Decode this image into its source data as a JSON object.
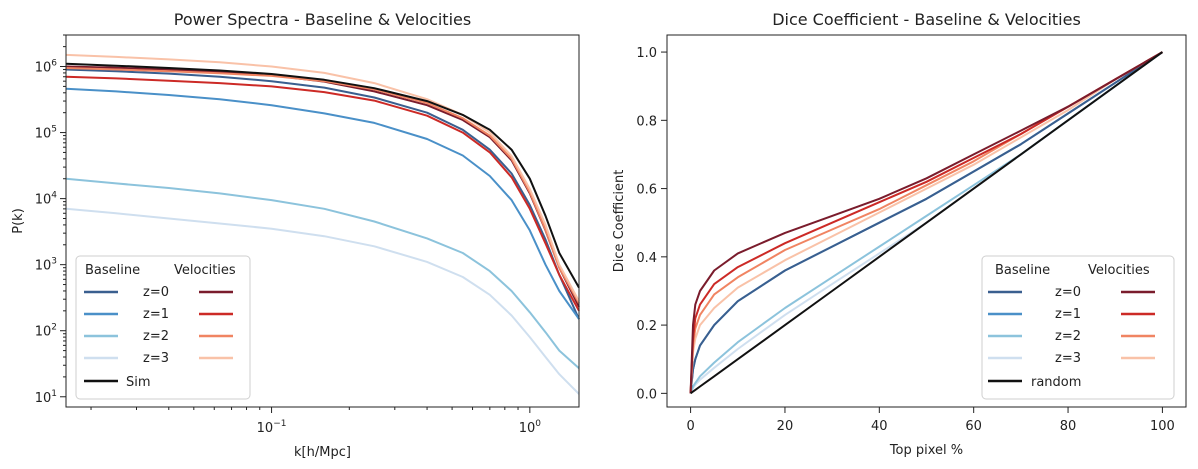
{
  "chart_data": [
    {
      "type": "line",
      "title": "Power Spectra - Baseline & Velocities",
      "xlabel": "k[h/Mpc]",
      "ylabel": "P(k)",
      "xscale": "log",
      "yscale": "log",
      "xlim": [
        0.016,
        1.55
      ],
      "ylim": [
        7,
        3000000
      ],
      "x_ticks": [
        {
          "value": 0.1,
          "base": "10",
          "exp": "−1"
        },
        {
          "value": 1,
          "base": "10",
          "exp": "0"
        }
      ],
      "y_ticks": [
        {
          "value": 10,
          "base": "10",
          "exp": "1"
        },
        {
          "value": 100,
          "base": "10",
          "exp": "2"
        },
        {
          "value": 1000,
          "base": "10",
          "exp": "3"
        },
        {
          "value": 10000,
          "base": "10",
          "exp": "4"
        },
        {
          "value": 100000,
          "base": "10",
          "exp": "5"
        },
        {
          "value": 1000000,
          "base": "10",
          "exp": "6"
        }
      ],
      "grid": false,
      "legend_placement": "lower-left",
      "legend": {
        "headers": [
          "Baseline",
          "Velocities"
        ],
        "rows": [
          "z=0",
          "z=1",
          "z=2",
          "z=3"
        ],
        "extra": "Sim"
      },
      "x": [
        0.016,
        0.025,
        0.04,
        0.063,
        0.1,
        0.16,
        0.25,
        0.4,
        0.55,
        0.7,
        0.85,
        1.0,
        1.15,
        1.3,
        1.55
      ],
      "series": [
        {
          "group": "Baseline",
          "label": "z=0",
          "color": "#3a5f8f",
          "values": [
            900000,
            850000,
            780000,
            700000,
            600000,
            480000,
            340000,
            200000,
            110000,
            55000,
            24000,
            8000,
            2400,
            700,
            150
          ]
        },
        {
          "group": "Baseline",
          "label": "z=1",
          "color": "#4a90c8",
          "values": [
            460000,
            420000,
            370000,
            320000,
            260000,
            195000,
            140000,
            80000,
            45000,
            22000,
            9500,
            3300,
            1000,
            400,
            150
          ]
        },
        {
          "group": "Baseline",
          "label": "z=2",
          "color": "#8cc3dc",
          "values": [
            20000,
            17000,
            14500,
            12000,
            9500,
            7000,
            4500,
            2500,
            1500,
            800,
            400,
            190,
            95,
            50,
            27
          ]
        },
        {
          "group": "Baseline",
          "label": "z=3",
          "color": "#cfdfef",
          "values": [
            7000,
            6000,
            5000,
            4200,
            3500,
            2700,
            1900,
            1100,
            650,
            350,
            170,
            80,
            40,
            22,
            11
          ]
        },
        {
          "group": "Velocities",
          "label": "z=0",
          "color": "#7a1c2c",
          "values": [
            1000000,
            960000,
            900000,
            830000,
            740000,
            590000,
            420000,
            260000,
            155000,
            85000,
            38000,
            12000,
            3300,
            900,
            230
          ]
        },
        {
          "group": "Velocities",
          "label": "z=1",
          "color": "#cc2a26",
          "values": [
            700000,
            660000,
            610000,
            560000,
            500000,
            410000,
            305000,
            180000,
            100000,
            50000,
            21000,
            7000,
            2100,
            700,
            200
          ]
        },
        {
          "group": "Velocities",
          "label": "z=2",
          "color": "#f08462",
          "values": [
            950000,
            900000,
            850000,
            790000,
            720000,
            600000,
            450000,
            280000,
            165000,
            90000,
            40000,
            12500,
            3400,
            900,
            260
          ]
        },
        {
          "group": "Velocities",
          "label": "z=3",
          "color": "#f9c2a8",
          "values": [
            1500000,
            1400000,
            1280000,
            1160000,
            1000000,
            800000,
            560000,
            320000,
            185000,
            100000,
            44000,
            14000,
            4000,
            1000,
            280
          ]
        },
        {
          "group": "Sim",
          "label": "Sim",
          "color": "#111111",
          "values": [
            1100000,
            1030000,
            950000,
            870000,
            770000,
            630000,
            470000,
            300000,
            185000,
            110000,
            55000,
            20000,
            5500,
            1500,
            450
          ]
        }
      ]
    },
    {
      "type": "line",
      "title": "Dice Coefficient - Baseline & Velocities",
      "xlabel": "Top pixel %",
      "ylabel": "Dice Coefficient",
      "xlim": [
        -5,
        105
      ],
      "ylim": [
        -0.04,
        1.05
      ],
      "x_ticks": [
        0,
        20,
        40,
        60,
        80,
        100
      ],
      "y_ticks": [
        "0.0",
        "0.2",
        "0.4",
        "0.6",
        "0.8",
        "1.0"
      ],
      "grid": false,
      "legend_placement": "lower-right",
      "legend": {
        "headers": [
          "Baseline",
          "Velocities"
        ],
        "rows": [
          "z=0",
          "z=1",
          "z=2",
          "z=3"
        ],
        "extra": "random"
      },
      "x": [
        0,
        0.5,
        1,
        2,
        5,
        10,
        20,
        30,
        40,
        50,
        60,
        70,
        80,
        90,
        100
      ],
      "series": [
        {
          "group": "Baseline",
          "label": "z=0",
          "color": "#3a5f8f",
          "values": [
            0.0,
            0.07,
            0.1,
            0.14,
            0.2,
            0.27,
            0.36,
            0.43,
            0.5,
            0.57,
            0.65,
            0.73,
            0.82,
            0.91,
            1.0
          ]
        },
        {
          "group": "Baseline",
          "label": "z=1",
          "color": "#4a90c8",
          "values": [
            0.0,
            0.07,
            0.1,
            0.14,
            0.2,
            0.27,
            0.36,
            0.43,
            0.5,
            0.57,
            0.65,
            0.73,
            0.82,
            0.91,
            1.0
          ]
        },
        {
          "group": "Baseline",
          "label": "z=2",
          "color": "#8cc3dc",
          "values": [
            0.0,
            0.02,
            0.03,
            0.05,
            0.09,
            0.15,
            0.25,
            0.34,
            0.43,
            0.52,
            0.61,
            0.7,
            0.8,
            0.9,
            1.0
          ]
        },
        {
          "group": "Baseline",
          "label": "z=3",
          "color": "#cfdfef",
          "values": [
            0.0,
            0.015,
            0.025,
            0.04,
            0.075,
            0.13,
            0.23,
            0.32,
            0.41,
            0.5,
            0.6,
            0.7,
            0.8,
            0.9,
            1.0
          ]
        },
        {
          "group": "Velocities",
          "label": "z=0",
          "color": "#7a1c2c",
          "values": [
            0.0,
            0.2,
            0.26,
            0.3,
            0.36,
            0.41,
            0.47,
            0.52,
            0.57,
            0.63,
            0.7,
            0.77,
            0.84,
            0.92,
            1.0
          ]
        },
        {
          "group": "Velocities",
          "label": "z=1",
          "color": "#cc2a26",
          "values": [
            0.0,
            0.16,
            0.22,
            0.26,
            0.32,
            0.37,
            0.44,
            0.5,
            0.56,
            0.62,
            0.69,
            0.76,
            0.84,
            0.92,
            1.0
          ]
        },
        {
          "group": "Velocities",
          "label": "z=2",
          "color": "#f08462",
          "values": [
            0.0,
            0.14,
            0.19,
            0.23,
            0.29,
            0.34,
            0.42,
            0.48,
            0.54,
            0.61,
            0.68,
            0.76,
            0.84,
            0.92,
            1.0
          ]
        },
        {
          "group": "Velocities",
          "label": "z=3",
          "color": "#f9c2a8",
          "values": [
            0.0,
            0.12,
            0.16,
            0.2,
            0.25,
            0.31,
            0.39,
            0.46,
            0.53,
            0.6,
            0.67,
            0.75,
            0.83,
            0.92,
            1.0
          ]
        },
        {
          "group": "random",
          "label": "random",
          "color": "#111111",
          "values": [
            0.0,
            0.005,
            0.01,
            0.02,
            0.05,
            0.1,
            0.2,
            0.3,
            0.4,
            0.5,
            0.6,
            0.7,
            0.8,
            0.9,
            1.0
          ]
        }
      ]
    }
  ]
}
